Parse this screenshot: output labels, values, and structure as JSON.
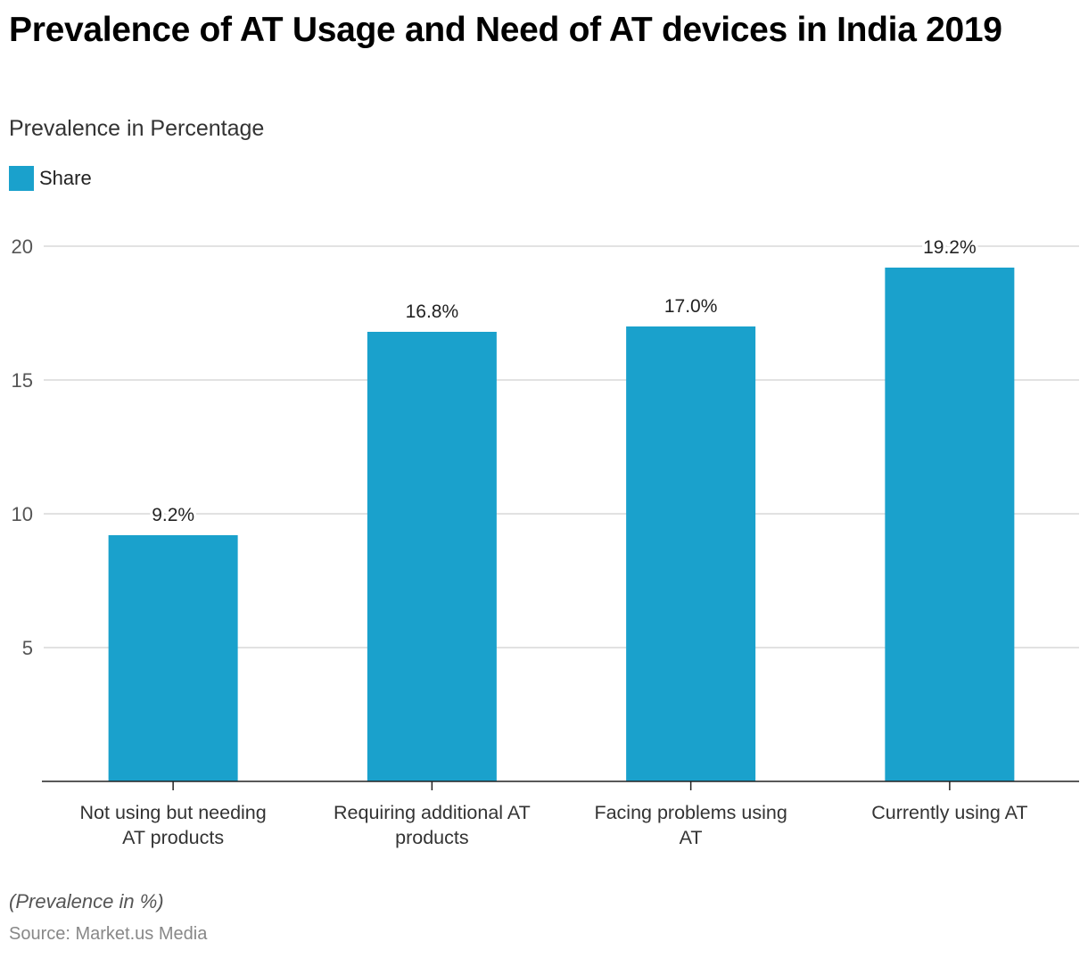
{
  "header": {
    "title": "Prevalence of AT Usage and Need of AT devices in India 2019",
    "subtitle": "Prevalence in Percentage"
  },
  "legend": {
    "label": "Share",
    "color": "#1aa1cc"
  },
  "footer": {
    "note": "(Prevalence in %)",
    "source": "Source: Market.us Media"
  },
  "chart_data": {
    "type": "bar",
    "title": "Prevalence of AT Usage and Need of AT devices in India 2019",
    "subtitle": "Prevalence in Percentage",
    "xlabel": "",
    "ylabel": "",
    "categories": [
      [
        "Not using but needing",
        "AT products"
      ],
      [
        "Requiring additional AT",
        "products"
      ],
      [
        "Facing problems using",
        "AT"
      ],
      [
        "Currently using AT"
      ]
    ],
    "series": [
      {
        "name": "Share",
        "values": [
          9.2,
          16.8,
          17.0,
          19.2
        ],
        "labels": [
          "9.2%",
          "16.8%",
          "17.0%",
          "19.2%"
        ],
        "color": "#1aa1cc"
      }
    ],
    "ylim": [
      0,
      20
    ],
    "yticks": [
      5,
      10,
      15,
      20
    ],
    "grid": true,
    "legend_position": "top-left"
  }
}
